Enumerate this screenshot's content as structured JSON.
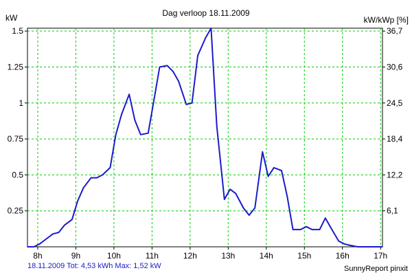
{
  "chart_data": {
    "type": "line",
    "title": "Dag  verloop 18.11.2009",
    "ylabel_left": "kW",
    "ylabel_right": "kW/kWp [%]",
    "x_ticks": [
      "8h",
      "9h",
      "10h",
      "11h",
      "12h",
      "13h",
      "14h",
      "15h",
      "16h",
      "17h"
    ],
    "x_tick_hours": [
      8,
      9,
      10,
      11,
      12,
      13,
      14,
      15,
      16,
      17
    ],
    "xlim": [
      7.73,
      17.05
    ],
    "y_ticks": [
      "0.25",
      "0.5",
      "0.75",
      "1",
      "1.25",
      "1.5"
    ],
    "y_tick_values": [
      0.25,
      0.5,
      0.75,
      1,
      1.25,
      1.5
    ],
    "ylim": [
      0,
      1.52
    ],
    "y2_ticks": [
      "6,1",
      "12,2",
      "18,4",
      "24,5",
      "30,6",
      "36,7"
    ],
    "grid": true,
    "colors": {
      "line": "#1a1acc",
      "grid": "#00cc00",
      "background": "#ffffff",
      "footer_text": "#1a1acc"
    },
    "series": [
      {
        "x": [
          7.73,
          7.9,
          8.05,
          8.2,
          8.4,
          8.55,
          8.7,
          8.9,
          9.05,
          9.2,
          9.4,
          9.55,
          9.7,
          9.9,
          10.05,
          10.2,
          10.4,
          10.55,
          10.7,
          10.9,
          11.05,
          11.2,
          11.4,
          11.55,
          11.7,
          11.9,
          12.05,
          12.2,
          12.4,
          12.55,
          12.7,
          12.9,
          13.05,
          13.2,
          13.4,
          13.55,
          13.7,
          13.9,
          14.05,
          14.2,
          14.4,
          14.55,
          14.7,
          14.9,
          15.05,
          15.2,
          15.4,
          15.55,
          15.7,
          15.9,
          16.05,
          16.2,
          16.4,
          16.6,
          16.8,
          17.05
        ],
        "y": [
          0.0,
          0.0,
          0.02,
          0.05,
          0.09,
          0.1,
          0.15,
          0.19,
          0.32,
          0.41,
          0.48,
          0.48,
          0.5,
          0.55,
          0.78,
          0.92,
          1.06,
          0.88,
          0.78,
          0.79,
          1.02,
          1.25,
          1.26,
          1.22,
          1.15,
          0.99,
          1.0,
          1.33,
          1.45,
          1.52,
          0.84,
          0.33,
          0.4,
          0.37,
          0.27,
          0.22,
          0.27,
          0.66,
          0.49,
          0.55,
          0.53,
          0.35,
          0.12,
          0.12,
          0.14,
          0.12,
          0.12,
          0.2,
          0.13,
          0.04,
          0.02,
          0.01,
          0.0,
          0.0,
          0.0,
          0.0
        ]
      }
    ]
  },
  "footer": {
    "summary": "18.11.2009 Tot: 4,53 kWh Max: 1,52 kW",
    "credit": "SunnyReport pinxit"
  }
}
